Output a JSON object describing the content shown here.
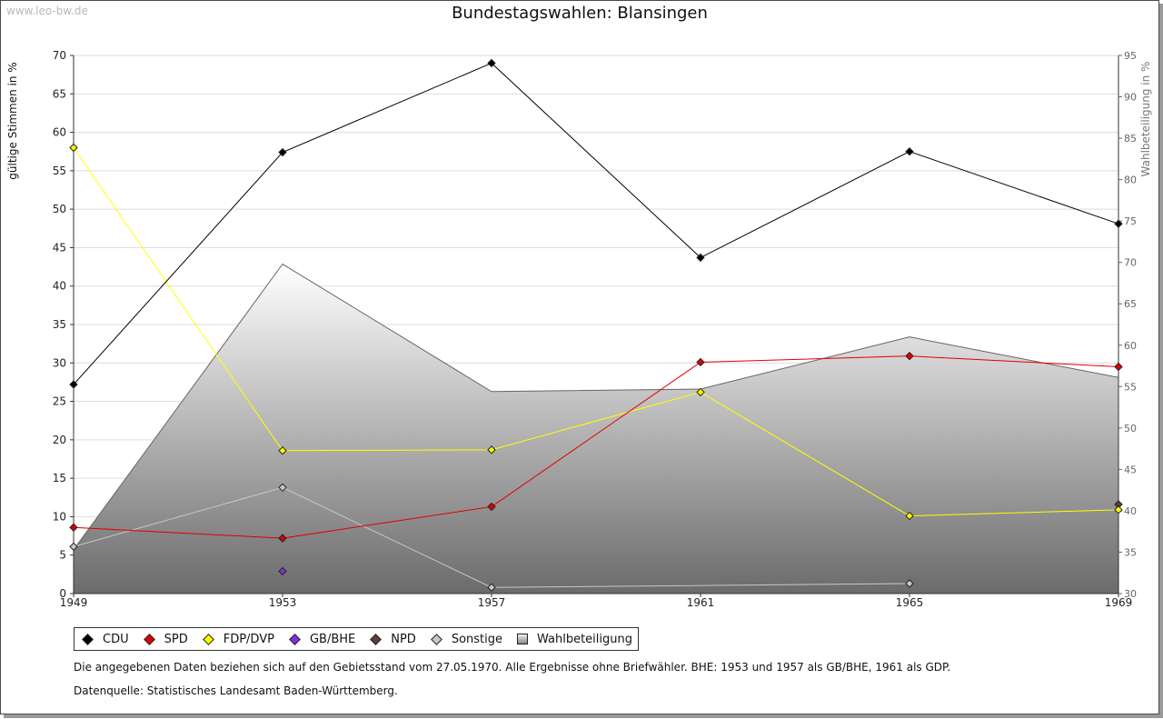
{
  "watermark": "www.leo-bw.de",
  "colors": {
    "CDU": "#000000",
    "SPD": "#e00000",
    "FDP/DVP": "#ffff00",
    "GB/BHE": "#8a2be2",
    "NPD": "#5a4034",
    "Sonstige": "#c8c8c8",
    "Wahlbeteiligung": "#888888"
  },
  "chart_data": {
    "type": "line",
    "title": "Bundestagswahlen: Blansingen",
    "ylabel": "gültige Stimmen in %",
    "ylabel_right": "Wahlbeteiligung in %",
    "ylim": [
      0,
      70
    ],
    "yticks": [
      0,
      5,
      10,
      15,
      20,
      25,
      30,
      35,
      40,
      45,
      50,
      55,
      60,
      65,
      70
    ],
    "ylim_right": [
      30,
      95
    ],
    "yticks_right": [
      30,
      35,
      40,
      45,
      50,
      55,
      60,
      65,
      70,
      75,
      80,
      85,
      90,
      95
    ],
    "x": [
      1949,
      1953,
      1957,
      1961,
      1965,
      1969
    ],
    "xlim": [
      1949,
      1969
    ],
    "grid": true,
    "legend_position": "bottom-left",
    "series": [
      {
        "name": "CDU",
        "values": [
          27.2,
          57.4,
          69.0,
          43.7,
          57.5,
          48.1
        ]
      },
      {
        "name": "SPD",
        "values": [
          8.6,
          7.2,
          11.3,
          30.1,
          30.9,
          29.5
        ]
      },
      {
        "name": "FDP/DVP",
        "values": [
          58.0,
          18.6,
          18.7,
          26.2,
          10.1,
          10.9
        ]
      },
      {
        "name": "GB/BHE",
        "values": [
          null,
          2.9,
          null,
          null,
          null,
          null
        ]
      },
      {
        "name": "NPD",
        "values": [
          null,
          null,
          null,
          null,
          null,
          11.6
        ]
      },
      {
        "name": "Sonstige",
        "values": [
          6.1,
          13.8,
          0.8,
          null,
          1.3,
          null
        ]
      }
    ],
    "area_series": {
      "name": "Wahlbeteiligung",
      "axis": "right",
      "values": [
        35.3,
        69.8,
        54.4,
        54.7,
        61.0,
        56.1
      ]
    }
  },
  "legend": [
    "CDU",
    "SPD",
    "FDP/DVP",
    "GB/BHE",
    "NPD",
    "Sonstige",
    "Wahlbeteiligung"
  ],
  "notes": [
    "Die angegebenen Daten beziehen sich auf den Gebietsstand vom 27.05.1970. Alle Ergebnisse ohne Briefwähler. BHE: 1953 und 1957 als GB/BHE, 1961 als GDP.",
    "Datenquelle: Statistisches Landesamt Baden-Württemberg."
  ]
}
